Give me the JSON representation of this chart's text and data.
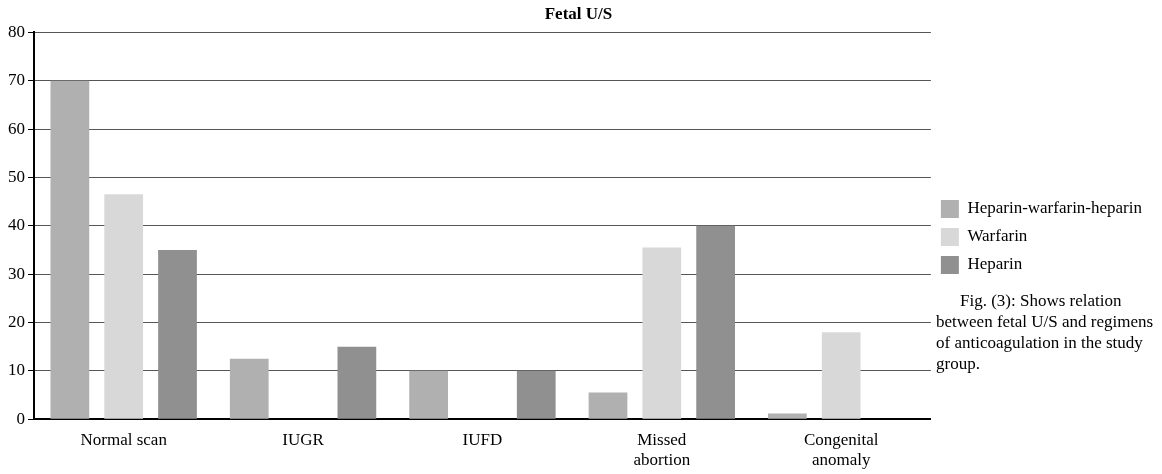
{
  "chart_data": {
    "type": "bar",
    "title": "Fetal U/S",
    "categories": [
      "Normal scan",
      "IUGR",
      "IUFD",
      "Missed abortion",
      "Congenital anomaly"
    ],
    "series": [
      {
        "name": "Heparin-warfarin-heparin",
        "color": "#b0b0b0",
        "values": [
          70,
          12.5,
          10,
          5.5,
          1.2
        ]
      },
      {
        "name": "Warfarin",
        "color": "#d8d8d8",
        "values": [
          46.5,
          0,
          0,
          35.5,
          18
        ]
      },
      {
        "name": "Heparin",
        "color": "#909090",
        "values": [
          35,
          15,
          10,
          40,
          0
        ]
      }
    ],
    "ylim": [
      0,
      80
    ],
    "yticks": [
      0,
      10,
      20,
      30,
      40,
      50,
      60,
      70,
      80
    ],
    "grid": "y",
    "legend": "right",
    "annotations": [
      "Fig. (3): Shows relation between fetal U/S and regimens of anticoagulation in the study group."
    ]
  }
}
